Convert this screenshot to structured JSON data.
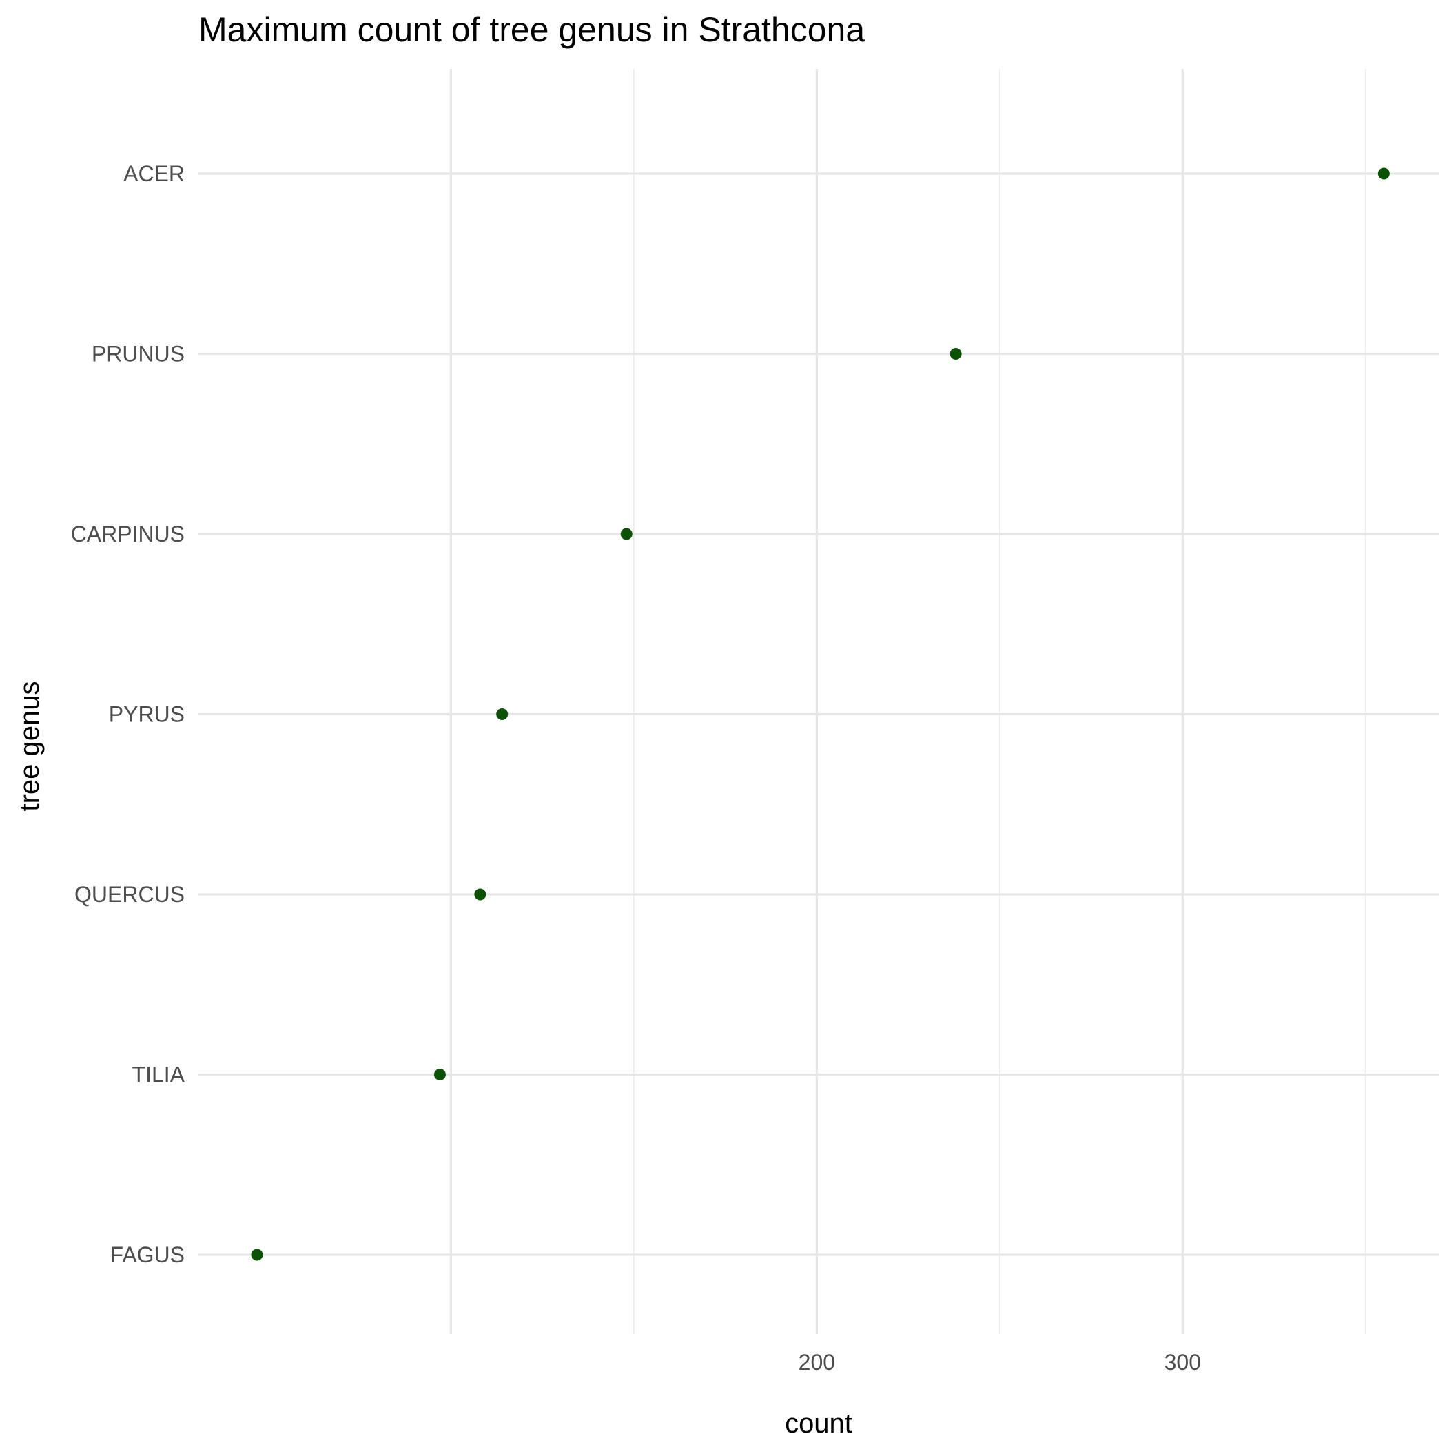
{
  "chart_data": {
    "type": "scatter",
    "title": "Maximum count of tree genus in Strathcona",
    "xlabel": "count",
    "ylabel": "tree genus",
    "categories": [
      "ACER",
      "PRUNUS",
      "CARPINUS",
      "PYRUS",
      "QUERCUS",
      "TILIA",
      "FAGUS"
    ],
    "values": [
      355,
      238,
      148,
      114,
      108,
      97,
      47
    ],
    "xlim": [
      31,
      370
    ],
    "x_ticks": [
      200,
      300
    ],
    "x_major_grid": [
      100,
      150,
      200,
      250,
      300,
      350
    ],
    "grid": true,
    "legend": "none",
    "point_color": "#0b5205"
  }
}
